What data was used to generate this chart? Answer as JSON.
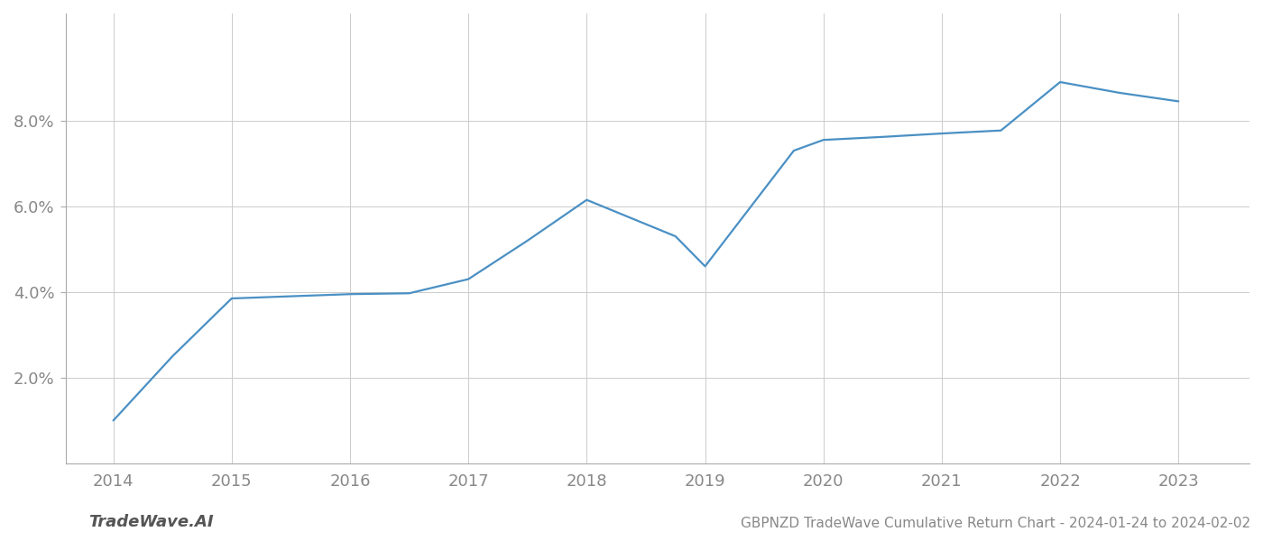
{
  "x_values": [
    2014,
    2014.5,
    2015,
    2015.5,
    2016,
    2016.5,
    2017,
    2017.5,
    2018,
    2018.75,
    2019,
    2019.75,
    2020,
    2020.5,
    2021,
    2021.5,
    2022,
    2022.5,
    2023
  ],
  "y_values": [
    1.0,
    2.5,
    3.85,
    3.9,
    3.95,
    3.97,
    4.3,
    5.2,
    6.15,
    5.3,
    4.6,
    7.3,
    7.55,
    7.62,
    7.7,
    7.77,
    8.9,
    8.65,
    8.45
  ],
  "line_color": "#4a90c4",
  "background_color": "#ffffff",
  "grid_color": "#cccccc",
  "title": "GBPNZD TradeWave Cumulative Return Chart - 2024-01-24 to 2024-02-02",
  "watermark": "TradeWave.AI",
  "xlim": [
    2013.6,
    2023.6
  ],
  "ylim": [
    0.0,
    10.5
  ],
  "yticks": [
    2.0,
    4.0,
    6.0,
    8.0
  ],
  "xticks": [
    2014,
    2015,
    2016,
    2017,
    2018,
    2019,
    2020,
    2021,
    2022,
    2023
  ],
  "title_fontsize": 11,
  "tick_fontsize": 13,
  "watermark_fontsize": 13,
  "line_width": 1.6
}
